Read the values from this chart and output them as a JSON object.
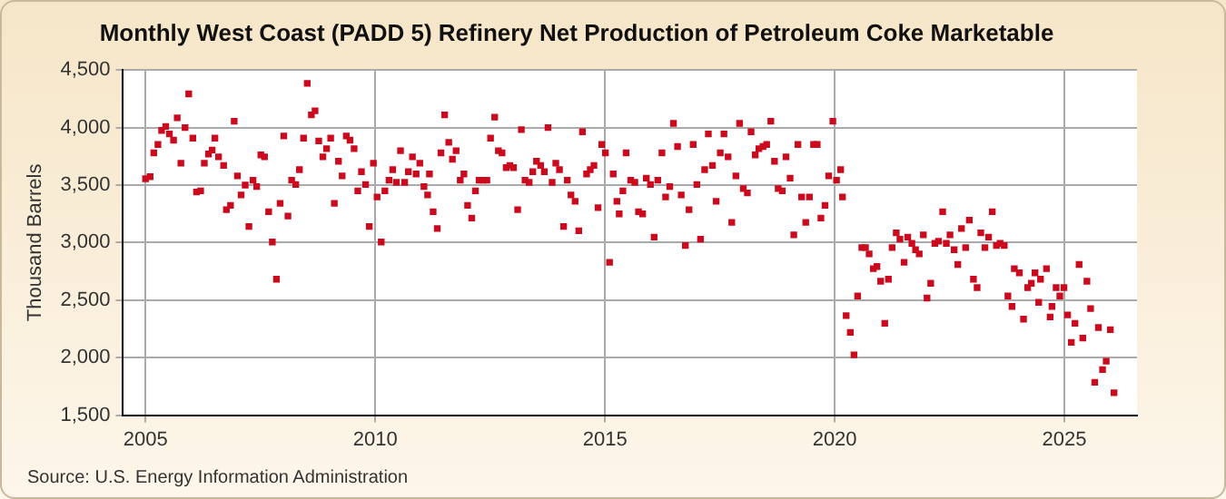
{
  "chart_data": {
    "type": "scatter",
    "title": "Monthly West Coast (PADD 5) Refinery Net Production of Petroleum Coke Marketable",
    "ylabel": "Thousand Barrels",
    "annotations": [
      "Source: U.S. Energy Information Administration"
    ],
    "xlim": [
      2004.51,
      2026.58
    ],
    "xticks": [
      2005,
      2010,
      2015,
      2020,
      2025
    ],
    "ylim": [
      1500,
      4500
    ],
    "yticks": [
      {
        "value": 1500,
        "label": "1,500"
      },
      {
        "value": 2000,
        "label": "2,000"
      },
      {
        "value": 2500,
        "label": "2,500"
      },
      {
        "value": 3000,
        "label": "3,000"
      },
      {
        "value": 3500,
        "label": "3,500"
      },
      {
        "value": 4000,
        "label": "4,000"
      },
      {
        "value": 4500,
        "label": "4,500"
      }
    ],
    "grid": true,
    "marker": "square",
    "legend": false,
    "series": [
      {
        "color": "#cc0a1e",
        "x": [
          2005.0,
          2005.1,
          2005.18,
          2005.27,
          2005.35,
          2005.44,
          2005.52,
          2005.61,
          2005.69,
          2005.77,
          2005.86,
          2005.94,
          2006.03,
          2006.11,
          2006.2,
          2006.28,
          2006.37,
          2006.45,
          2006.51,
          2006.59,
          2006.7,
          2006.76,
          2006.85,
          2006.93,
          2007.0,
          2007.08,
          2007.17,
          2007.25,
          2007.34,
          2007.42,
          2007.51,
          2007.59,
          2007.68,
          2007.76,
          2007.85,
          2007.93,
          2008.01,
          2008.1,
          2008.18,
          2008.27,
          2008.35,
          2008.44,
          2008.52,
          2008.61,
          2008.69,
          2008.77,
          2008.86,
          2008.94,
          2009.03,
          2009.11,
          2009.2,
          2009.28,
          2009.37,
          2009.45,
          2009.54,
          2009.62,
          2009.7,
          2009.79,
          2009.87,
          2009.96,
          2010.04,
          2010.13,
          2010.21,
          2010.3,
          2010.38,
          2010.46,
          2010.55,
          2010.64,
          2010.72,
          2010.81,
          2010.89,
          2010.97,
          2011.06,
          2011.14,
          2011.18,
          2011.26,
          2011.35,
          2011.43,
          2011.51,
          2011.6,
          2011.68,
          2011.76,
          2011.85,
          2011.93,
          2012.01,
          2012.1,
          2012.18,
          2012.26,
          2012.35,
          2012.43,
          2012.51,
          2012.6,
          2012.68,
          2012.76,
          2012.85,
          2012.93,
          2013.01,
          2013.1,
          2013.18,
          2013.26,
          2013.35,
          2013.43,
          2013.51,
          2013.6,
          2013.68,
          2013.76,
          2013.85,
          2013.93,
          2014.01,
          2014.1,
          2014.18,
          2014.26,
          2014.35,
          2014.43,
          2014.51,
          2014.6,
          2014.68,
          2014.76,
          2014.85,
          2014.93,
          2015.01,
          2015.1,
          2015.18,
          2015.26,
          2015.31,
          2015.39,
          2015.46,
          2015.56,
          2015.65,
          2015.73,
          2015.82,
          2015.9,
          2015.99,
          2016.07,
          2016.15,
          2016.24,
          2016.32,
          2016.41,
          2016.49,
          2016.58,
          2016.66,
          2016.75,
          2016.83,
          2016.92,
          2017.0,
          2017.08,
          2017.17,
          2017.25,
          2017.34,
          2017.42,
          2017.51,
          2017.59,
          2017.68,
          2017.76,
          2017.85,
          2017.93,
          2018.01,
          2018.1,
          2018.18,
          2018.27,
          2018.35,
          2018.44,
          2018.52,
          2018.61,
          2018.69,
          2018.77,
          2018.86,
          2018.94,
          2019.03,
          2019.11,
          2019.2,
          2019.28,
          2019.37,
          2019.45,
          2019.54,
          2019.62,
          2019.7,
          2019.79,
          2019.87,
          2019.96,
          2020.04,
          2020.13,
          2020.17,
          2020.25,
          2020.34,
          2020.42,
          2020.5,
          2020.59,
          2020.67,
          2020.75,
          2020.84,
          2020.92,
          2021.0,
          2021.09,
          2021.17,
          2021.25,
          2021.34,
          2021.42,
          2021.51,
          2021.59,
          2021.68,
          2021.76,
          2021.84,
          2021.93,
          2022.01,
          2022.09,
          2022.18,
          2022.26,
          2022.35,
          2022.43,
          2022.51,
          2022.6,
          2022.68,
          2022.76,
          2022.85,
          2022.93,
          2023.02,
          2023.1,
          2023.18,
          2023.27,
          2023.35,
          2023.43,
          2023.52,
          2023.6,
          2023.69,
          2023.77,
          2023.86,
          2023.91,
          2024.02,
          2024.11,
          2024.2,
          2024.28,
          2024.36,
          2024.44,
          2024.48,
          2024.61,
          2024.69,
          2024.73,
          2024.82,
          2024.9,
          2024.99,
          2025.07,
          2025.15,
          2025.23,
          2025.32,
          2025.4,
          2025.49,
          2025.57,
          2025.66,
          2025.74,
          2025.83,
          2025.91,
          2026.0,
          2026.08
        ],
        "values": [
          3555,
          3573,
          3780,
          3853,
          3975,
          4010,
          3945,
          3890,
          4085,
          3690,
          4000,
          4293,
          3908,
          3440,
          3450,
          3690,
          3770,
          3805,
          3908,
          3745,
          3670,
          3286,
          3323,
          4055,
          3580,
          3414,
          3500,
          3140,
          3542,
          3487,
          3762,
          3745,
          3268,
          3005,
          2682,
          3341,
          3927,
          3231,
          3542,
          3505,
          3634,
          3908,
          4384,
          4110,
          4146,
          3884,
          3745,
          3817,
          3908,
          3341,
          3707,
          3580,
          3927,
          3890,
          3817,
          3450,
          3616,
          3505,
          3140,
          3690,
          3396,
          3005,
          3450,
          3542,
          3634,
          3524,
          3799,
          3524,
          3616,
          3745,
          3597,
          3690,
          3487,
          3414,
          3597,
          3268,
          3122,
          3780,
          4110,
          3872,
          3725,
          3799,
          3542,
          3597,
          3323,
          3213,
          3450,
          3542,
          3542,
          3542,
          3908,
          4091,
          3799,
          3780,
          3652,
          3670,
          3652,
          3286,
          3982,
          3542,
          3524,
          3616,
          3707,
          3670,
          3616,
          4000,
          3524,
          3690,
          3634,
          3140,
          3542,
          3414,
          3359,
          3103,
          3963,
          3597,
          3634,
          3670,
          3304,
          3853,
          3780,
          2829,
          3597,
          3359,
          3250,
          3450,
          3780,
          3542,
          3524,
          3268,
          3250,
          3560,
          3505,
          3048,
          3542,
          3780,
          3396,
          3487,
          4036,
          3835,
          3414,
          2975,
          3286,
          3853,
          3505,
          3030,
          3634,
          3945,
          3670,
          3359,
          3780,
          3945,
          3745,
          3176,
          3580,
          4036,
          3469,
          3432,
          3963,
          3762,
          3817,
          3835,
          3853,
          4055,
          3707,
          3469,
          3450,
          3745,
          3560,
          3067,
          3853,
          3396,
          3176,
          3396,
          3853,
          3853,
          3213,
          3323,
          3580,
          4055,
          3542,
          3634,
          3396,
          2365,
          2219,
          2024,
          2536,
          2957,
          2957,
          2902,
          2774,
          2792,
          2664,
          2298,
          2682,
          2957,
          3085,
          3030,
          2829,
          3048,
          2993,
          2938,
          2902,
          3067,
          2518,
          2646,
          2993,
          3012,
          3268,
          2993,
          3067,
          2938,
          2810,
          3122,
          2957,
          3195,
          2682,
          2609,
          3085,
          2957,
          3048,
          3268,
          2975,
          2993,
          2975,
          2536,
          2445,
          2774,
          2737,
          2335,
          2609,
          2646,
          2737,
          2481,
          2682,
          2774,
          2353,
          2445,
          2609,
          2536,
          2609,
          2371,
          2133,
          2298,
          2810,
          2170,
          2664,
          2426,
          1786,
          2262,
          1896,
          1969,
          2243,
          1695
        ]
      }
    ]
  }
}
